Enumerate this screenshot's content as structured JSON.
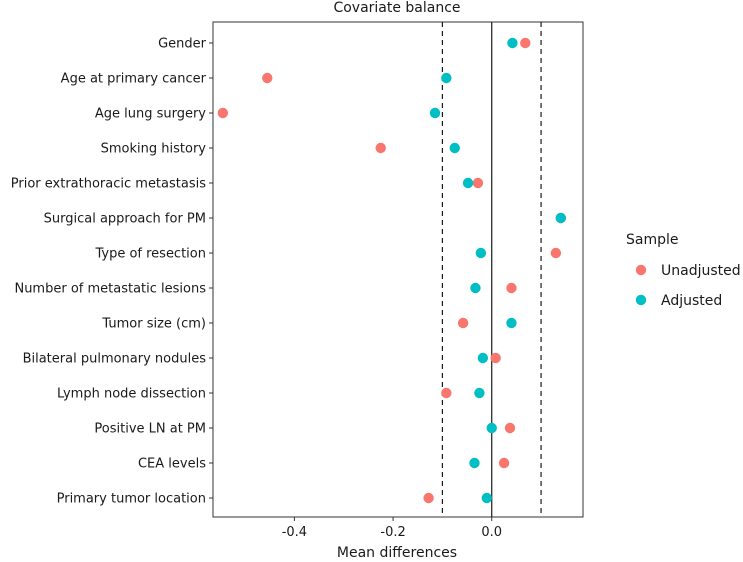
{
  "chart_data": {
    "type": "scatter",
    "title": "Covariate balance",
    "xlabel": "Mean differences",
    "ylabel": "",
    "xlim": [
      -0.565,
      0.185
    ],
    "xticks": [
      -0.4,
      -0.2,
      0.0
    ],
    "xtick_labels": [
      "-0.4",
      "-0.2",
      "0.0"
    ],
    "reference_lines": {
      "solid": [
        0.0
      ],
      "dashed": [
        -0.1,
        0.1
      ]
    },
    "grid": false,
    "legend": {
      "title": "Sample",
      "position": "right"
    },
    "categories": [
      "Gender",
      "Age at primary cancer",
      "Age lung surgery",
      "Smoking history",
      "Prior extrathoracic metastasis",
      "Surgical approach for PM",
      "Type of resection",
      "Number of metastatic lesions",
      "Tumor size  (cm)",
      "Bilateral pulmonary nodules",
      "Lymph node dissection",
      "Positive LN at PM",
      "CEA  levels",
      "Primary tumor location"
    ],
    "series": [
      {
        "name": "Unadjusted",
        "color": "#F8766D",
        "values": [
          0.068,
          -0.455,
          -0.545,
          -0.225,
          -0.028,
          0.14,
          0.13,
          0.04,
          -0.058,
          0.008,
          -0.092,
          0.037,
          0.025,
          -0.128
        ]
      },
      {
        "name": "Adjusted",
        "color": "#00BFC4",
        "values": [
          0.042,
          -0.092,
          -0.115,
          -0.075,
          -0.048,
          0.14,
          -0.022,
          -0.033,
          0.04,
          -0.018,
          -0.025,
          0.0,
          -0.035,
          -0.01
        ]
      }
    ]
  }
}
